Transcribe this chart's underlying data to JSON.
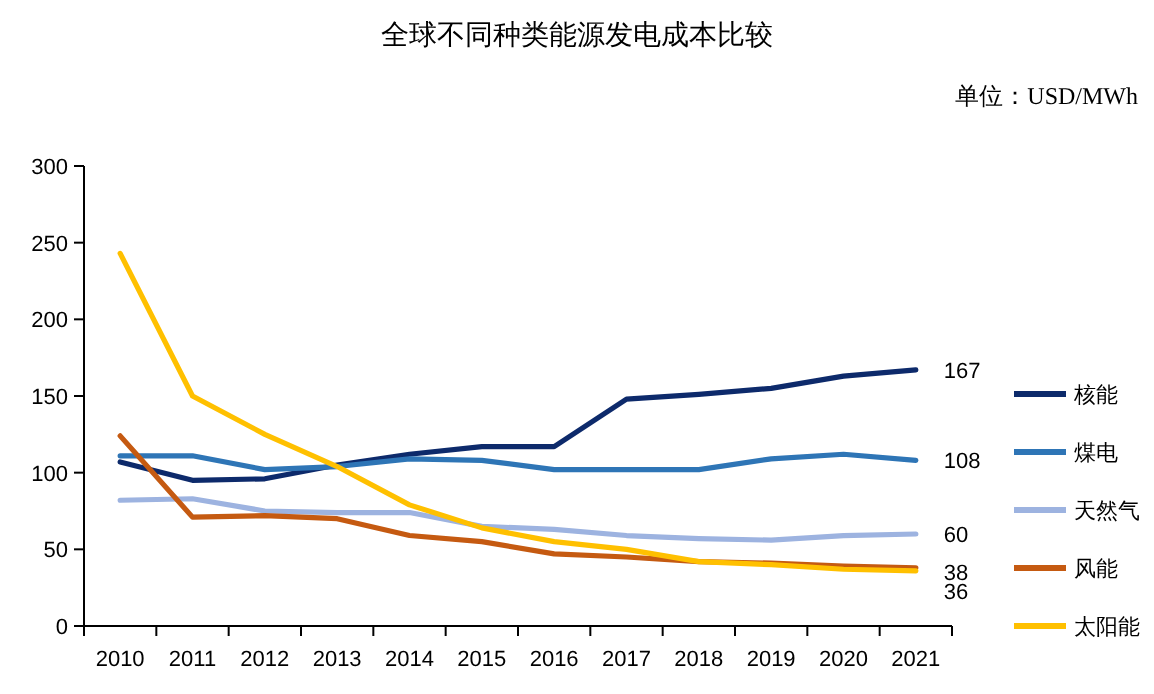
{
  "chart_data": {
    "type": "line",
    "title": "全球不同种类能源发电成本比较",
    "annotations": [
      "单位：USD/MWh"
    ],
    "categories": [
      "2010",
      "2011",
      "2012",
      "2013",
      "2014",
      "2015",
      "2016",
      "2017",
      "2018",
      "2019",
      "2020",
      "2021"
    ],
    "series": [
      {
        "name": "核能",
        "color": "#0d2a6b",
        "values": [
          107,
          95,
          96,
          105,
          112,
          117,
          117,
          148,
          151,
          155,
          163,
          167
        ],
        "value_labels": [
          null,
          null,
          null,
          null,
          null,
          null,
          null,
          null,
          null,
          null,
          null,
          "167"
        ]
      },
      {
        "name": "煤电",
        "color": "#2e75b6",
        "values": [
          111,
          111,
          102,
          104,
          109,
          108,
          102,
          102,
          102,
          109,
          112,
          108
        ],
        "value_labels": [
          null,
          null,
          null,
          null,
          null,
          null,
          null,
          null,
          null,
          null,
          null,
          "108"
        ]
      },
      {
        "name": "天然气",
        "color": "#9db3e0",
        "values": [
          82,
          83,
          75,
          74,
          74,
          65,
          63,
          59,
          57,
          56,
          59,
          60
        ],
        "value_labels": [
          null,
          null,
          null,
          null,
          null,
          null,
          null,
          null,
          null,
          null,
          null,
          "60"
        ]
      },
      {
        "name": "风能",
        "color": "#c55a11",
        "values": [
          124,
          71,
          72,
          70,
          59,
          55,
          47,
          45,
          42,
          41,
          39,
          38
        ],
        "value_labels": [
          null,
          null,
          null,
          null,
          null,
          null,
          null,
          null,
          null,
          null,
          null,
          "38"
        ]
      },
      {
        "name": "太阳能",
        "color": "#ffc000",
        "values": [
          243,
          150,
          125,
          104,
          79,
          64,
          55,
          50,
          42,
          40,
          37,
          36
        ],
        "value_labels": [
          null,
          null,
          null,
          null,
          null,
          null,
          null,
          null,
          null,
          null,
          null,
          "36"
        ]
      }
    ],
    "ylim": [
      0,
      300
    ],
    "yticks": [
      0,
      50,
      100,
      150,
      200,
      250,
      300
    ],
    "grid": false,
    "legend": "right",
    "marker": "none",
    "line_style": "solid"
  }
}
